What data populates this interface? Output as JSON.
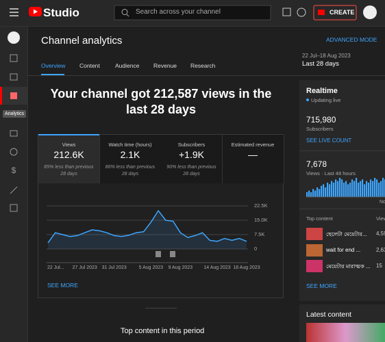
{
  "topbar": {
    "logo": "Studio",
    "search_placeholder": "Search across your channel",
    "create": "CREATE"
  },
  "sidebar": {
    "tooltip": "Analytics"
  },
  "header": {
    "title": "Channel analytics",
    "advanced": "ADVANCED MODE",
    "date_range": "22 Jul–18 Aug 2023",
    "period": "Last 28 days",
    "tabs": [
      "Overview",
      "Content",
      "Audience",
      "Revenue",
      "Research"
    ]
  },
  "headline": "Your channel got 212,587 views in the last 28 days",
  "metrics": [
    {
      "label": "Views",
      "value": "212.6K",
      "note": "85% less than previous 28 days"
    },
    {
      "label": "Watch time (hours)",
      "value": "2.1K",
      "note": "86% less than previous 28 days"
    },
    {
      "label": "Subscribers",
      "value": "+1.9K",
      "note": "90% less than previous 28 days"
    },
    {
      "label": "Estimated revenue",
      "value": "—"
    }
  ],
  "chart": {
    "type": "line",
    "categories": [
      "22 Jul...",
      null,
      null,
      null,
      null,
      "27 Jul 2023",
      null,
      null,
      null,
      "31 Jul 2023",
      null,
      null,
      null,
      null,
      "5 Aug 2023",
      null,
      null,
      null,
      "9 Aug 2023",
      null,
      null,
      null,
      null,
      "14 Aug 2023",
      null,
      null,
      null,
      "18 Aug 2023"
    ],
    "values": [
      3200,
      8500,
      7500,
      6500,
      7000,
      8500,
      10000,
      9500,
      8500,
      7000,
      6500,
      7200,
      8500,
      9000,
      14000,
      20000,
      15000,
      14500,
      8500,
      6000,
      7000,
      8500,
      4500,
      4000,
      5500,
      4500,
      5500,
      4000
    ],
    "ylim": [
      0,
      22500
    ],
    "yticks": [
      0,
      {
        "value": 7500,
        "label": "7.5K"
      },
      {
        "value": 15000,
        "label": "15.0K"
      },
      {
        "value": 22500,
        "label": "22.5K"
      }
    ],
    "color": "#3ea6ff",
    "grid": true
  },
  "see_more": "SEE MORE",
  "top_content_heading": "Top content in this period",
  "realtime": {
    "title": "Realtime",
    "status": "Updating live",
    "subscribers": "715,980",
    "subscribers_label": "Subscribers",
    "see_live": "SEE LIVE COUNT",
    "views": "7,678",
    "views_label": "Views · Last 48 hours",
    "bars": [
      3,
      4,
      3,
      5,
      4,
      6,
      5,
      7,
      8,
      6,
      9,
      8,
      10,
      9,
      11,
      10,
      12,
      11,
      9,
      10,
      8,
      9,
      11,
      10,
      12,
      9,
      10,
      11,
      8,
      10,
      9,
      11,
      10,
      12,
      11,
      9,
      10,
      12,
      11,
      10
    ],
    "now_label": "No",
    "top_label": "Top content",
    "views_col": "View",
    "rows": [
      {
        "title": "ছেলেটা মেয়েটার...",
        "views": "4,59"
      },
      {
        "title": "wait for end ...",
        "views": "2,63"
      },
      {
        "title": "মেয়েটার মারাত্মক ...",
        "views": "15"
      }
    ],
    "see_more": "SEE MORE"
  },
  "latest": {
    "title": "Latest content"
  }
}
